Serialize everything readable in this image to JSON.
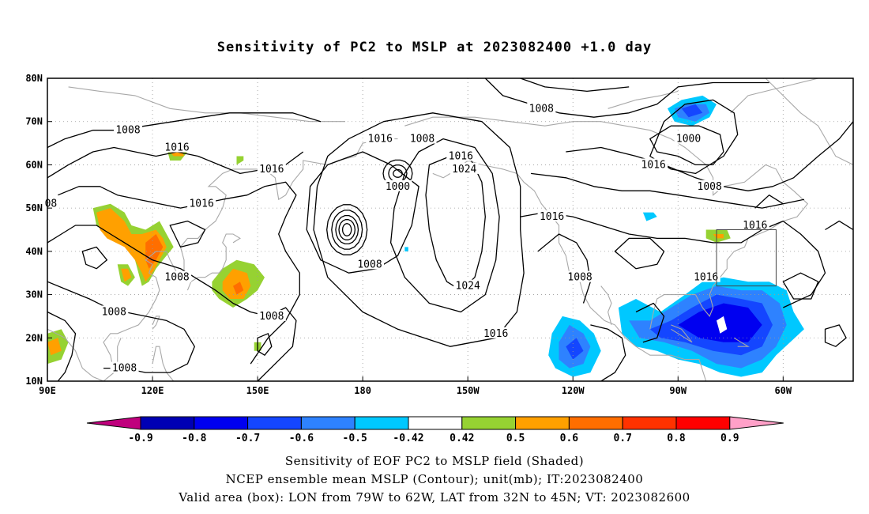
{
  "title": "Sensitivity of PC2 to MSLP at 2023082400 +1.0 day",
  "map": {
    "lat_labels": [
      "80N",
      "70N",
      "60N",
      "50N",
      "40N",
      "30N",
      "20N",
      "10N"
    ],
    "lon_labels": [
      "90E",
      "120E",
      "150E",
      "180",
      "150W",
      "120W",
      "90W",
      "60W"
    ],
    "contour_labels": [
      {
        "text": "1008",
        "lon": 113,
        "lat": 68
      },
      {
        "text": "1016",
        "lon": 127,
        "lat": 64
      },
      {
        "text": "1016",
        "lon": 134,
        "lat": 51
      },
      {
        "text": "1016",
        "lon": 154,
        "lat": 59
      },
      {
        "text": "1016",
        "lon": 185,
        "lat": 66
      },
      {
        "text": "1008",
        "lon": 197,
        "lat": 66
      },
      {
        "text": "1000",
        "lon": 190,
        "lat": 55
      },
      {
        "text": "1016",
        "lon": 208,
        "lat": 62
      },
      {
        "text": "1024",
        "lon": 209,
        "lat": 59
      },
      {
        "text": "1008",
        "lon": 182,
        "lat": 37
      },
      {
        "text": "1024",
        "lon": 210,
        "lat": 32
      },
      {
        "text": "1016",
        "lon": 218,
        "lat": 21
      },
      {
        "text": "1008",
        "lon": 109,
        "lat": 26
      },
      {
        "text": "1008",
        "lon": 127,
        "lat": 34
      },
      {
        "text": "1008",
        "lon": 154,
        "lat": 25
      },
      {
        "text": "1008",
        "lon": 112,
        "lat": 13
      },
      {
        "text": "1008",
        "lon": 231,
        "lat": 73
      },
      {
        "text": "1000",
        "lon": 273,
        "lat": 66
      },
      {
        "text": "1016",
        "lon": 263,
        "lat": 60
      },
      {
        "text": "1008",
        "lon": 279,
        "lat": 55
      },
      {
        "text": "1016",
        "lon": 234,
        "lat": 48
      },
      {
        "text": "1008",
        "lon": 242,
        "lat": 34
      },
      {
        "text": "1016",
        "lon": 292,
        "lat": 46
      },
      {
        "text": "1016",
        "lon": 278,
        "lat": 34
      },
      {
        "text": "08",
        "lon": 91,
        "lat": 51
      }
    ],
    "valid_box": {
      "lon_min": 281,
      "lon_max": 298,
      "lat_min": 32,
      "lat_max": 45
    }
  },
  "colorbar": {
    "labels": [
      "-0.9",
      "-0.8",
      "-0.7",
      "-0.6",
      "-0.5",
      "-0.42",
      "0.42",
      "0.5",
      "0.6",
      "0.7",
      "0.8",
      "0.9"
    ],
    "colors": [
      "#c0007d",
      "#0000b4",
      "#0000f0",
      "#1446ff",
      "#2e82ff",
      "#00c8ff",
      "#ffffff",
      "#96d232",
      "#ffa000",
      "#ff6e00",
      "#ff3200",
      "#ff0000",
      "#ffa0c8"
    ]
  },
  "captions": {
    "line1": "Sensitivity of EOF PC2 to MSLP field (Shaded)",
    "line2": "NCEP ensemble mean MSLP (Contour); unit(mb); IT:2023082400",
    "line3": "Valid area (box): LON from 79W to 62W, LAT from 32N to 45N; VT: 2023082600"
  }
}
